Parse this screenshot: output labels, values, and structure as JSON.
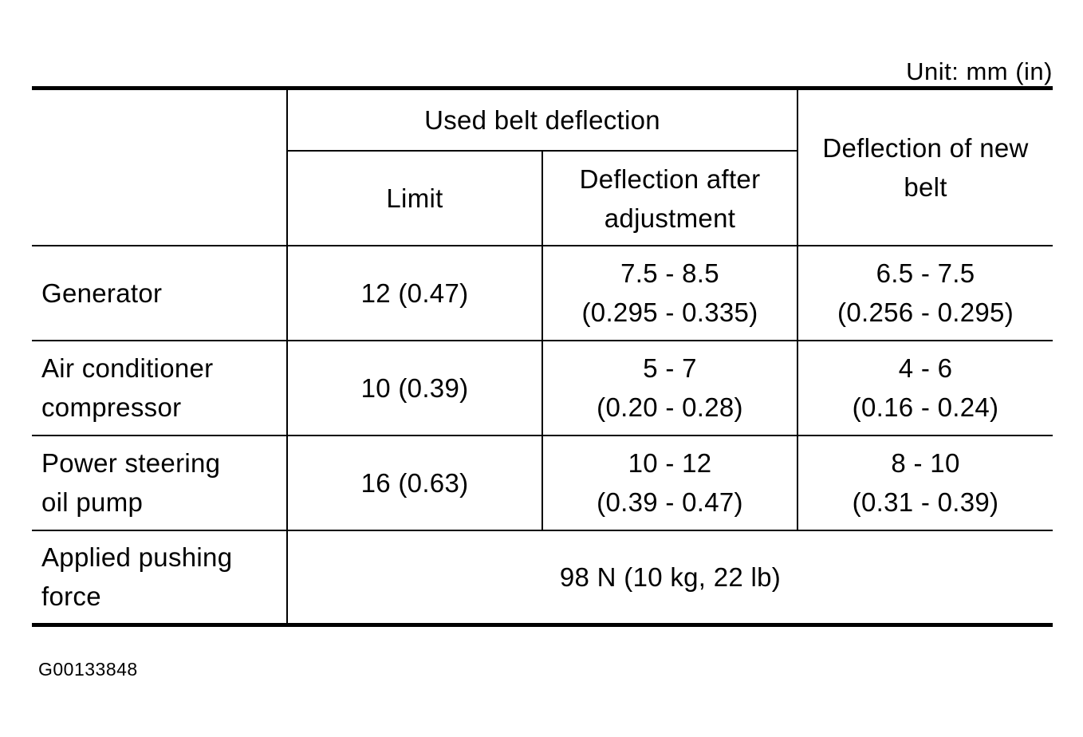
{
  "unit_note": "Unit: mm (in)",
  "header": {
    "used_group": "Used belt deflection",
    "limit": "Limit",
    "after_adjustment": [
      "Deflection after",
      "adjustment"
    ],
    "new_belt": [
      "Deflection of new",
      "belt"
    ]
  },
  "rows": [
    {
      "label": [
        "Generator"
      ],
      "limit": "12 (0.47)",
      "after_adjustment": [
        "7.5 - 8.5",
        "(0.295 - 0.335)"
      ],
      "new_belt": [
        "6.5 - 7.5",
        "(0.256 - 0.295)"
      ]
    },
    {
      "label": [
        "Air conditioner",
        "compressor"
      ],
      "limit": "10 (0.39)",
      "after_adjustment": [
        "5 - 7",
        "(0.20 - 0.28)"
      ],
      "new_belt": [
        "4 - 6",
        "(0.16 - 0.24)"
      ]
    },
    {
      "label": [
        "Power steering",
        "oil pump"
      ],
      "limit": "16 (0.63)",
      "after_adjustment": [
        "10 - 12",
        "(0.39 - 0.47)"
      ],
      "new_belt": [
        "8 - 10",
        "(0.31 - 0.39)"
      ]
    }
  ],
  "pushing_force": {
    "label": [
      "Applied pushing",
      "force"
    ],
    "value": "98 N (10 kg, 22 lb)"
  },
  "figure_id": "G00133848"
}
